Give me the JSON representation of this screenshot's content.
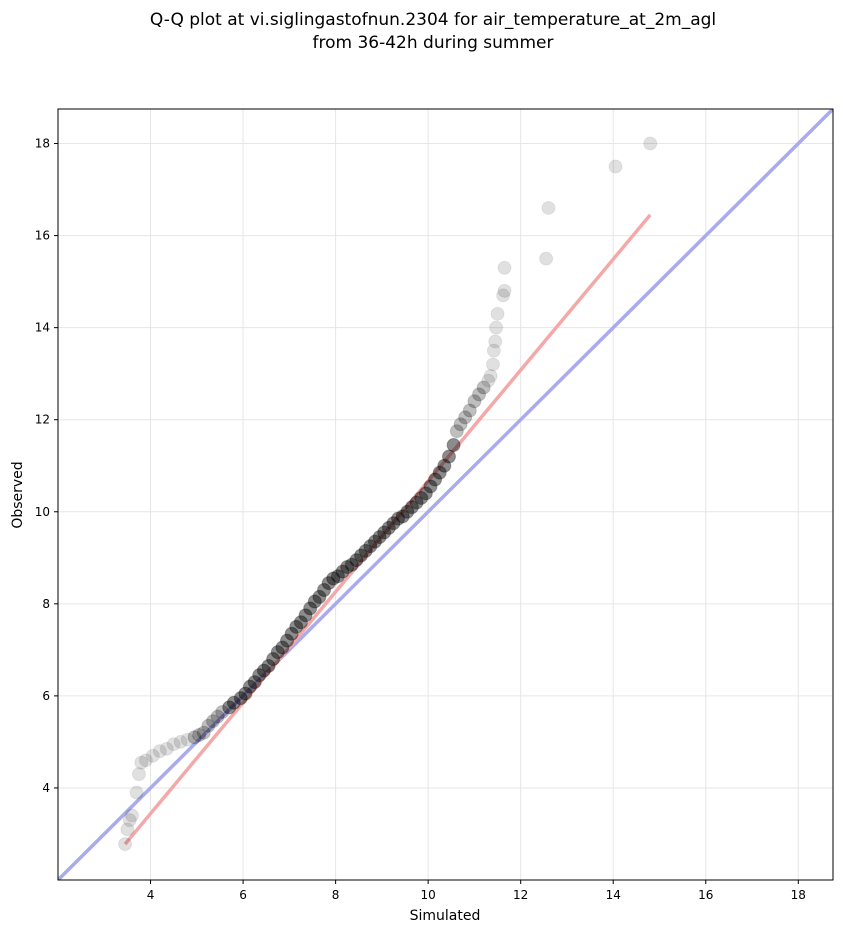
{
  "chart_data": {
    "type": "scatter",
    "title_line1": "Q-Q plot at vi.siglingastofnun.2304 for air_temperature_at_2m_agl",
    "title_line2": "from 36-42h during summer",
    "xlabel": "Simulated",
    "ylabel": "Observed",
    "xlim": [
      2.0,
      18.75
    ],
    "ylim": [
      2.0,
      18.75
    ],
    "xticks": [
      4,
      6,
      8,
      10,
      12,
      14,
      16,
      18
    ],
    "yticks": [
      4,
      6,
      8,
      10,
      12,
      14,
      16,
      18
    ],
    "grid": true,
    "colors": {
      "points": "#000000",
      "identity_line": "#aaaaee",
      "fit_line": "#f4a9a9"
    },
    "identity_line": {
      "x": [
        2.0,
        18.75
      ],
      "y": [
        2.0,
        18.75
      ]
    },
    "fit_line": {
      "x": [
        3.45,
        14.8
      ],
      "y": [
        2.78,
        16.45
      ]
    },
    "points": {
      "x": [
        3.45,
        3.5,
        3.55,
        3.6,
        3.7,
        3.75,
        3.8,
        3.9,
        4.05,
        4.2,
        4.35,
        4.5,
        4.65,
        4.8,
        4.95,
        5.05,
        5.15,
        5.25,
        5.35,
        5.45,
        5.55,
        5.7,
        5.8,
        5.95,
        6.05,
        6.15,
        6.25,
        6.35,
        6.45,
        6.55,
        6.65,
        6.75,
        6.85,
        6.95,
        7.05,
        7.15,
        7.25,
        7.35,
        7.45,
        7.55,
        7.65,
        7.75,
        7.85,
        7.95,
        8.05,
        8.15,
        8.25,
        8.35,
        8.45,
        8.55,
        8.65,
        8.75,
        8.85,
        8.95,
        9.05,
        9.15,
        9.25,
        9.35,
        9.45,
        9.55,
        9.65,
        9.75,
        9.85,
        9.95,
        10.05,
        10.15,
        10.25,
        10.35,
        10.45,
        10.55,
        10.62,
        10.7,
        10.8,
        10.9,
        11.0,
        11.1,
        11.2,
        11.3,
        11.35,
        11.4,
        11.42,
        11.45,
        11.47,
        11.5,
        11.62,
        11.65,
        11.65,
        12.55,
        12.6,
        14.05,
        14.8
      ],
      "y": [
        2.78,
        3.1,
        3.3,
        3.4,
        3.9,
        4.3,
        4.55,
        4.6,
        4.7,
        4.8,
        4.85,
        4.95,
        5.0,
        5.05,
        5.1,
        5.15,
        5.2,
        5.35,
        5.45,
        5.55,
        5.65,
        5.75,
        5.85,
        5.95,
        6.05,
        6.2,
        6.3,
        6.45,
        6.55,
        6.65,
        6.8,
        6.95,
        7.05,
        7.2,
        7.35,
        7.5,
        7.6,
        7.75,
        7.9,
        8.05,
        8.15,
        8.3,
        8.45,
        8.55,
        8.6,
        8.7,
        8.8,
        8.85,
        8.95,
        9.05,
        9.15,
        9.25,
        9.35,
        9.45,
        9.55,
        9.65,
        9.75,
        9.85,
        9.9,
        10.0,
        10.1,
        10.2,
        10.3,
        10.4,
        10.55,
        10.7,
        10.85,
        11.0,
        11.2,
        11.45,
        11.75,
        11.9,
        12.05,
        12.2,
        12.4,
        12.55,
        12.7,
        12.85,
        12.95,
        13.2,
        13.5,
        13.7,
        14.0,
        14.3,
        14.7,
        14.8,
        15.3,
        15.5,
        16.6,
        17.5,
        18.0
      ]
    }
  }
}
